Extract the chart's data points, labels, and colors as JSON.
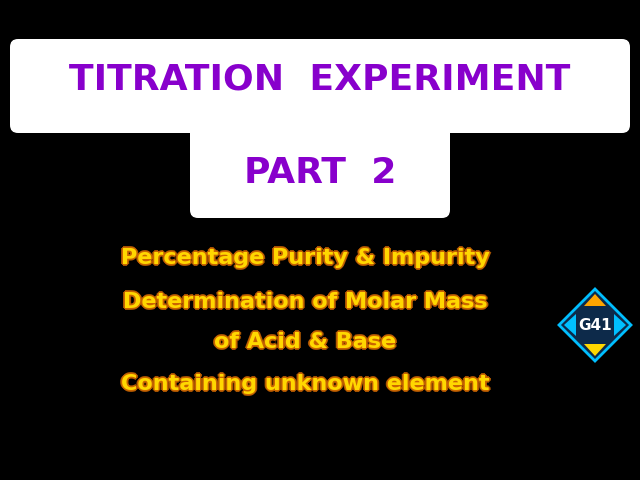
{
  "bg_color": "#000000",
  "title_box_color": "#ffffff",
  "title_line1": "TITRATION  EXPERIMENT",
  "title_line2": "PART  2",
  "title_color": "#8800cc",
  "subtitle_lines": [
    "Percentage Purity & Impurity",
    "Determination of Molar Mass",
    "of Acid & Base",
    "Containing unknown element"
  ],
  "subtitle_color": "#FFD700",
  "subtitle_shadow_color": "#cc6600",
  "logo_text": "G41",
  "logo_bg": "#0d2a4a",
  "logo_border": "#00bfff",
  "logo_arrow_top": "#FFA500",
  "logo_arrow_bottom": "#FFD700",
  "logo_sides": "#00bfff",
  "fig_width": 6.4,
  "fig_height": 4.8,
  "dpi": 100
}
